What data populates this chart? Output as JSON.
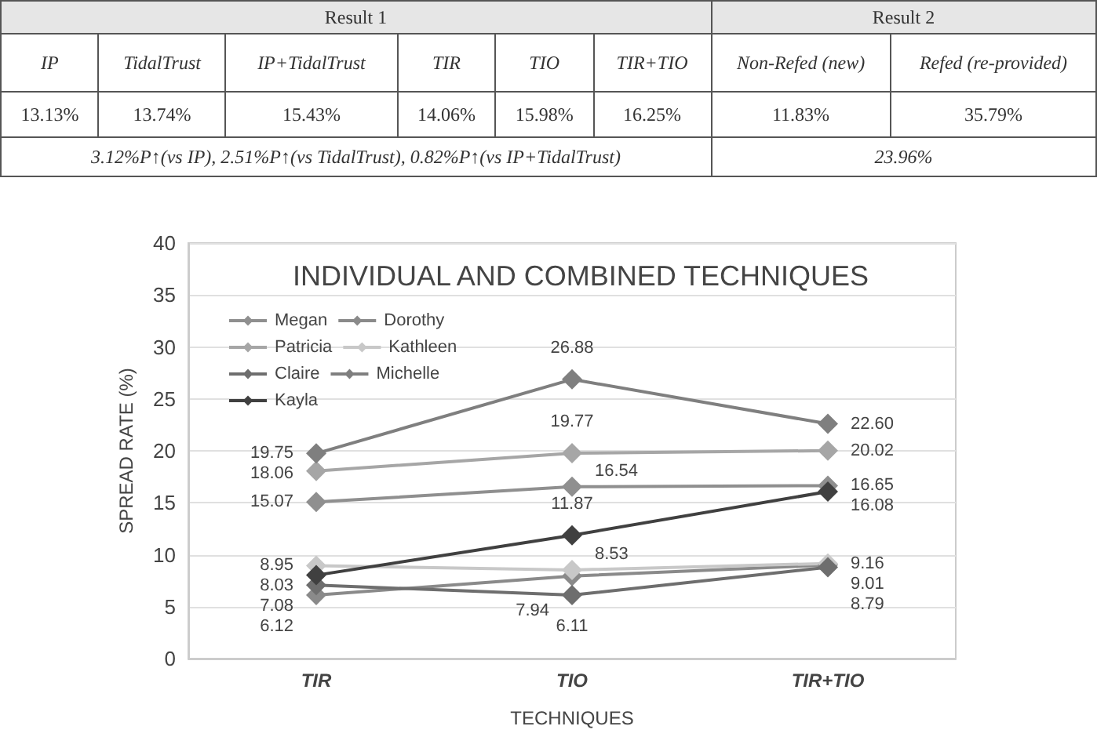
{
  "chart_data": [
    {
      "type": "other",
      "annotations": [
        "Result 1",
        "Result 2",
        "IP",
        "TidalTrust",
        "IP+TidalTrust",
        "TIR",
        "TIO",
        "TIR+TIO",
        "Non-Refed (new)",
        "Refed (re-provided)",
        "13.13%",
        "13.74%",
        "15.43%",
        "14.06%",
        "15.98%",
        "16.25%",
        "11.83%",
        "35.79%",
        "3.12%P↑(vs IP), 2.51%P↑(vs TidalTrust), 0.82%P↑(vs IP+TidalTrust)",
        "23.96%"
      ]
    },
    {
      "type": "line",
      "title": "INDIVIDUAL AND COMBINED TECHNIQUES",
      "xlabel": "TECHNIQUES",
      "ylabel": "SPREAD RATE (%)",
      "categories": [
        "TIR",
        "TIO",
        "TIR+TIO"
      ],
      "series": [
        {
          "name": "Megan",
          "color": "#8f8f8f",
          "values": [
            15.07,
            16.54,
            16.65
          ],
          "value_labels": [
            "15.07",
            "16.54",
            "16.65"
          ]
        },
        {
          "name": "Dorothy",
          "color": "#8a8a8a",
          "values": [
            6.12,
            7.94,
            9.01
          ],
          "value_labels": [
            "6.12",
            "7.94",
            "9.01"
          ]
        },
        {
          "name": "Patricia",
          "color": "#a6a6a6",
          "values": [
            18.06,
            19.77,
            20.02
          ],
          "value_labels": [
            "18.06",
            "19.77",
            "20.02"
          ]
        },
        {
          "name": "Kathleen",
          "color": "#c8c8c8",
          "values": [
            8.95,
            8.53,
            9.16
          ],
          "value_labels": [
            "8.95",
            "8.53",
            "9.16"
          ]
        },
        {
          "name": "Claire",
          "color": "#6e6e6e",
          "values": [
            7.08,
            6.11,
            8.79
          ],
          "value_labels": [
            "7.08",
            "6.11",
            "8.79"
          ]
        },
        {
          "name": "Michelle",
          "color": "#7f7f7f",
          "values": [
            19.75,
            26.88,
            22.6
          ],
          "value_labels": [
            "19.75",
            "26.88",
            "22.60"
          ]
        },
        {
          "name": "Kayla",
          "color": "#404040",
          "values": [
            8.03,
            11.87,
            16.08
          ],
          "value_labels": [
            "8.03",
            "11.87",
            "16.08"
          ]
        }
      ],
      "ylim": [
        0,
        40
      ],
      "yticks": [
        0,
        5,
        10,
        15,
        20,
        25,
        30,
        35,
        40
      ],
      "grid": "y",
      "legend": "top left",
      "marker": "diamond",
      "line_style": "solid"
    }
  ]
}
